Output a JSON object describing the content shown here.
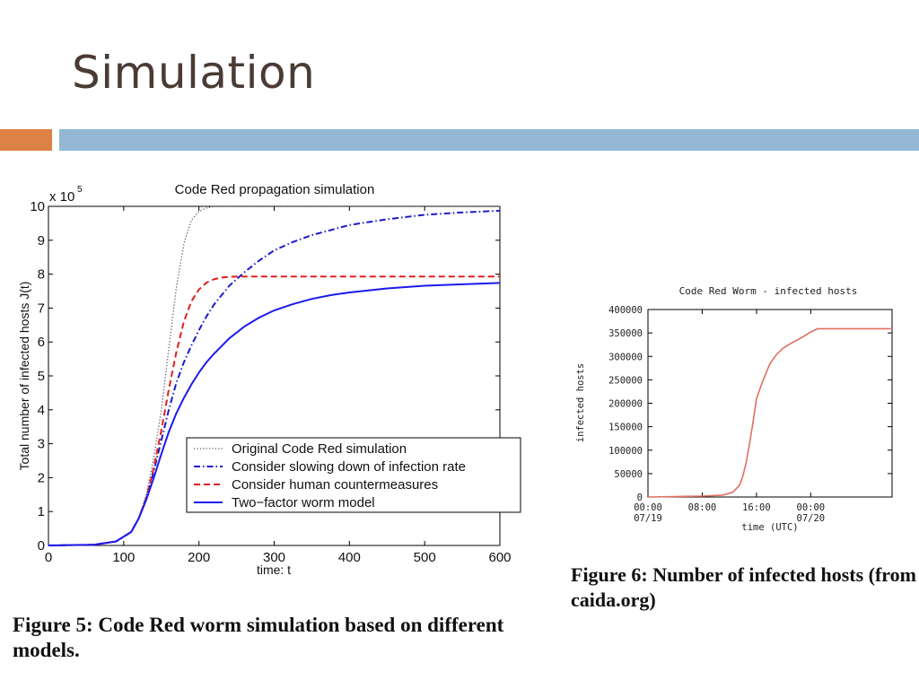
{
  "slide": {
    "title": "Simulation"
  },
  "colors": {
    "accent_orange": "#dd8245",
    "accent_blue": "#93b7d4"
  },
  "chart_data": [
    {
      "type": "line",
      "title": "Code Red propagation simulation",
      "xlabel": "time: t",
      "ylabel": "Total number of infected hosts J(t)",
      "exponent_label": "x 10",
      "exponent_power": "5",
      "xlim": [
        0,
        600
      ],
      "ylim": [
        0,
        10
      ],
      "y_unit_multiplier": 100000,
      "xticks": [
        "0",
        "100",
        "200",
        "300",
        "400",
        "500",
        "600"
      ],
      "yticks": [
        "0",
        "1",
        "2",
        "3",
        "4",
        "5",
        "6",
        "7",
        "8",
        "9",
        "10"
      ],
      "grid": false,
      "legend_position": "bottom-right",
      "caption": "Figure 5: Code Red worm simulation based on different models.",
      "series": [
        {
          "name": "Original Code Red simulation",
          "style": "dotted",
          "color": "#555555",
          "x": [
            0,
            60,
            90,
            110,
            120,
            130,
            140,
            150,
            160,
            170,
            180,
            190,
            200,
            210,
            220,
            600
          ],
          "y": [
            0,
            0.02,
            0.12,
            0.4,
            0.8,
            1.5,
            2.6,
            4.0,
            5.8,
            7.6,
            8.9,
            9.6,
            9.85,
            9.95,
            10,
            10
          ]
        },
        {
          "name": "Consider slowing down of infection rate",
          "style": "dashdot",
          "color": "#1a1acc",
          "x": [
            0,
            60,
            90,
            110,
            120,
            130,
            140,
            150,
            160,
            170,
            180,
            190,
            200,
            210,
            220,
            240,
            260,
            280,
            300,
            325,
            350,
            375,
            400,
            450,
            500,
            550,
            600
          ],
          "y": [
            0,
            0.02,
            0.12,
            0.4,
            0.8,
            1.4,
            2.2,
            3.1,
            4.0,
            4.8,
            5.4,
            5.9,
            6.35,
            6.75,
            7.1,
            7.65,
            8.05,
            8.4,
            8.7,
            8.95,
            9.15,
            9.3,
            9.45,
            9.62,
            9.75,
            9.82,
            9.87
          ]
        },
        {
          "name": "Consider human countermeasures",
          "style": "dashed",
          "color": "#e02020",
          "x": [
            0,
            60,
            90,
            110,
            120,
            130,
            140,
            150,
            160,
            170,
            180,
            190,
            200,
            210,
            220,
            230,
            240,
            250,
            260,
            300,
            600
          ],
          "y": [
            0,
            0.02,
            0.12,
            0.4,
            0.8,
            1.4,
            2.3,
            3.4,
            4.6,
            5.7,
            6.6,
            7.2,
            7.55,
            7.75,
            7.85,
            7.9,
            7.92,
            7.93,
            7.93,
            7.93,
            7.93
          ]
        },
        {
          "name": "Two−factor worm model",
          "style": "solid",
          "color": "#1a1aee",
          "x": [
            0,
            60,
            90,
            110,
            120,
            130,
            140,
            150,
            160,
            170,
            180,
            190,
            200,
            210,
            220,
            240,
            260,
            280,
            300,
            325,
            350,
            375,
            400,
            450,
            500,
            550,
            600
          ],
          "y": [
            0,
            0.02,
            0.12,
            0.4,
            0.8,
            1.35,
            2.0,
            2.7,
            3.35,
            3.9,
            4.35,
            4.75,
            5.1,
            5.4,
            5.65,
            6.1,
            6.45,
            6.72,
            6.93,
            7.12,
            7.27,
            7.38,
            7.46,
            7.58,
            7.66,
            7.7,
            7.74
          ]
        }
      ]
    },
    {
      "type": "line",
      "title": "Code Red Worm - infected hosts",
      "xlabel": "time (UTC)",
      "ylabel": "infected hosts",
      "ylim": [
        0,
        400000
      ],
      "xlim": [
        0,
        36
      ],
      "yticks": [
        "0",
        "50000",
        "100000",
        "150000",
        "200000",
        "250000",
        "300000",
        "350000",
        "400000"
      ],
      "xticks": [
        {
          "value": 0,
          "label": "00:00",
          "sub": "07/19"
        },
        {
          "value": 8,
          "label": "08:00",
          "sub": ""
        },
        {
          "value": 16,
          "label": "16:00",
          "sub": ""
        },
        {
          "value": 24,
          "label": "00:00",
          "sub": "07/20"
        }
      ],
      "grid": false,
      "caption": "Figure 6: Number of infected hosts (from caida.org)",
      "series": [
        {
          "name": "",
          "color": "#e07060",
          "x": [
            0,
            4,
            8,
            11,
            12.5,
            13.5,
            14,
            14.5,
            15,
            15.5,
            16,
            17,
            18,
            19,
            20,
            21,
            22,
            23,
            24,
            25,
            27,
            30,
            34,
            36
          ],
          "y": [
            0,
            1000,
            2000,
            4000,
            10000,
            25000,
            45000,
            75000,
            115000,
            160000,
            210000,
            250000,
            285000,
            305000,
            318000,
            327000,
            335000,
            343000,
            352000,
            359000,
            359000,
            359000,
            359000,
            359000
          ]
        }
      ]
    }
  ]
}
